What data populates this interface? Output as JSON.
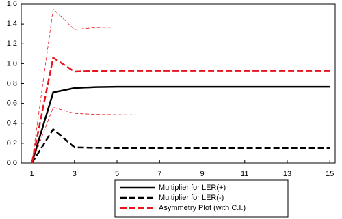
{
  "chart_data": {
    "type": "line",
    "x": [
      1,
      2,
      3,
      4,
      5,
      6,
      7,
      8,
      9,
      10,
      11,
      12,
      13,
      14,
      15
    ],
    "xlim": [
      0.5,
      15.25
    ],
    "xticks": [
      1,
      3,
      5,
      7,
      9,
      11,
      13,
      15
    ],
    "ylim": [
      0,
      1.6
    ],
    "yticks": [
      {
        "value": 0,
        "label": "0.0"
      },
      0.2,
      0.4,
      0.6,
      0.8,
      {
        "value": 1,
        "label": "1.0"
      },
      1.2,
      1.4,
      1.6
    ],
    "series": [
      {
        "name": "Multiplier for LER(+)",
        "color": "#000000",
        "line_style": "solid",
        "line_width": "thick",
        "values": [
          0,
          0.71,
          0.755,
          0.765,
          0.768,
          0.768,
          0.768,
          0.768,
          0.768,
          0.768,
          0.768,
          0.768,
          0.768,
          0.768,
          0.768
        ]
      },
      {
        "name": "Multiplier for LER(-)",
        "color": "#000000",
        "line_style": "dashed",
        "line_width": "thick",
        "values": [
          0,
          0.34,
          0.16,
          0.155,
          0.153,
          0.152,
          0.152,
          0.152,
          0.152,
          0.152,
          0.152,
          0.152,
          0.152,
          0.152,
          0.152
        ]
      },
      {
        "name": "Asymmetry Plot (with C.I.)",
        "color": "#e8141c",
        "line_style": "dashed",
        "line_width": "thick",
        "values": [
          0,
          1.06,
          0.92,
          0.928,
          0.93,
          0.93,
          0.93,
          0.93,
          0.93,
          0.93,
          0.93,
          0.93,
          0.93,
          0.93,
          0.93
        ]
      },
      {
        "color": "#e8141c",
        "line_style": "dashed",
        "line_width": "thin",
        "values": [
          0,
          1.55,
          1.345,
          1.365,
          1.37,
          1.37,
          1.37,
          1.37,
          1.37,
          1.37,
          1.37,
          1.37,
          1.37,
          1.37,
          1.37
        ]
      },
      {
        "color": "#e8141c",
        "line_style": "dashed",
        "line_width": "thin",
        "values": [
          0,
          0.56,
          0.5,
          0.49,
          0.487,
          0.485,
          0.485,
          0.485,
          0.485,
          0.485,
          0.485,
          0.485,
          0.485,
          0.485,
          0.485
        ]
      }
    ]
  }
}
